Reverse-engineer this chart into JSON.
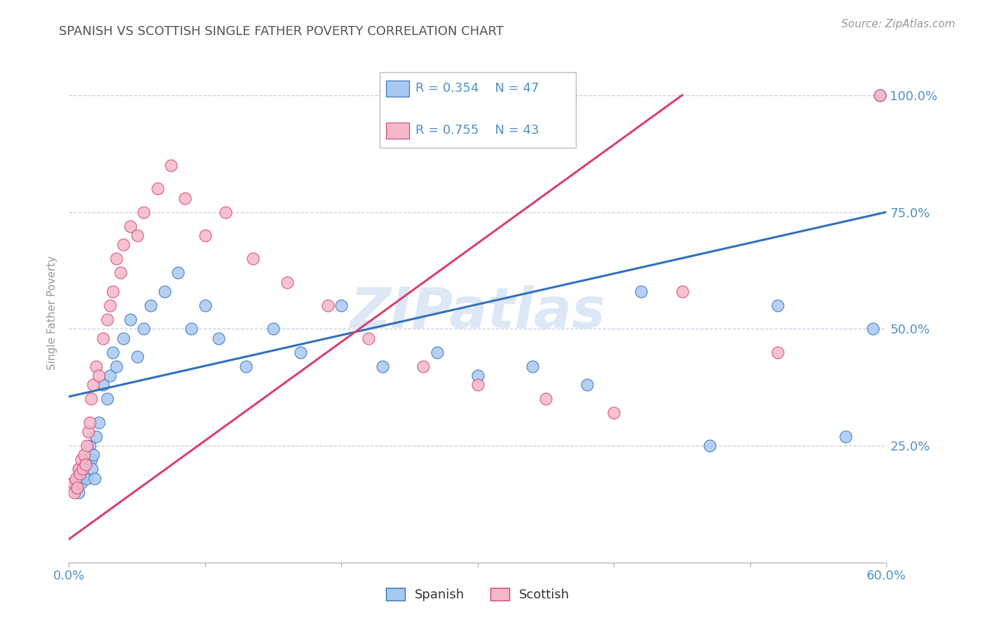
{
  "title": "SPANISH VS SCOTTISH SINGLE FATHER POVERTY CORRELATION CHART",
  "source": "Source: ZipAtlas.com",
  "ylabel": "Single Father Poverty",
  "watermark": "ZIPatlas",
  "xlim": [
    0.0,
    0.6
  ],
  "ylim": [
    0.0,
    1.07
  ],
  "ytick_positions": [
    0.25,
    0.5,
    0.75,
    1.0
  ],
  "ytick_labels": [
    "25.0%",
    "50.0%",
    "75.0%",
    "100.0%"
  ],
  "legend_r_spanish": "R = 0.354",
  "legend_n_spanish": "N = 47",
  "legend_r_scottish": "R = 0.755",
  "legend_n_scottish": "N = 43",
  "color_spanish": "#A8C8F0",
  "color_scottish": "#F5B8C8",
  "color_trendline_spanish": "#3070C0",
  "color_trendline_scottish": "#D84070",
  "color_tick_label": "#5090C8",
  "color_grid": "#C0D0E0",
  "background_color": "#FFFFFF",
  "spanish_x": [
    0.003,
    0.005,
    0.006,
    0.007,
    0.008,
    0.009,
    0.01,
    0.011,
    0.012,
    0.013,
    0.015,
    0.016,
    0.017,
    0.018,
    0.019,
    0.02,
    0.022,
    0.025,
    0.028,
    0.03,
    0.032,
    0.035,
    0.04,
    0.045,
    0.05,
    0.055,
    0.06,
    0.07,
    0.08,
    0.09,
    0.1,
    0.11,
    0.13,
    0.15,
    0.17,
    0.2,
    0.23,
    0.27,
    0.3,
    0.34,
    0.38,
    0.42,
    0.47,
    0.52,
    0.57,
    0.59,
    0.595
  ],
  "spanish_y": [
    0.17,
    0.16,
    0.18,
    0.15,
    0.2,
    0.17,
    0.19,
    0.21,
    0.22,
    0.18,
    0.25,
    0.22,
    0.2,
    0.23,
    0.18,
    0.27,
    0.3,
    0.38,
    0.35,
    0.4,
    0.45,
    0.42,
    0.48,
    0.52,
    0.44,
    0.5,
    0.55,
    0.58,
    0.62,
    0.5,
    0.55,
    0.48,
    0.42,
    0.5,
    0.45,
    0.55,
    0.42,
    0.45,
    0.4,
    0.42,
    0.38,
    0.58,
    0.25,
    0.55,
    0.27,
    0.5,
    1.0
  ],
  "scottish_x": [
    0.003,
    0.004,
    0.005,
    0.006,
    0.007,
    0.008,
    0.009,
    0.01,
    0.011,
    0.012,
    0.013,
    0.014,
    0.015,
    0.016,
    0.018,
    0.02,
    0.022,
    0.025,
    0.028,
    0.03,
    0.032,
    0.035,
    0.038,
    0.04,
    0.045,
    0.05,
    0.055,
    0.065,
    0.075,
    0.085,
    0.1,
    0.115,
    0.135,
    0.16,
    0.19,
    0.22,
    0.26,
    0.3,
    0.35,
    0.4,
    0.45,
    0.52,
    0.595
  ],
  "scottish_y": [
    0.17,
    0.15,
    0.18,
    0.16,
    0.2,
    0.19,
    0.22,
    0.2,
    0.23,
    0.21,
    0.25,
    0.28,
    0.3,
    0.35,
    0.38,
    0.42,
    0.4,
    0.48,
    0.52,
    0.55,
    0.58,
    0.65,
    0.62,
    0.68,
    0.72,
    0.7,
    0.75,
    0.8,
    0.85,
    0.78,
    0.7,
    0.75,
    0.65,
    0.6,
    0.55,
    0.48,
    0.42,
    0.38,
    0.35,
    0.32,
    0.58,
    0.45,
    1.0
  ],
  "trendline_spanish_x0": 0.0,
  "trendline_spanish_y0": 0.355,
  "trendline_spanish_x1": 0.6,
  "trendline_spanish_y1": 0.75,
  "trendline_scottish_x0": 0.0,
  "trendline_scottish_y0": 0.05,
  "trendline_scottish_x1": 0.45,
  "trendline_scottish_y1": 1.0
}
